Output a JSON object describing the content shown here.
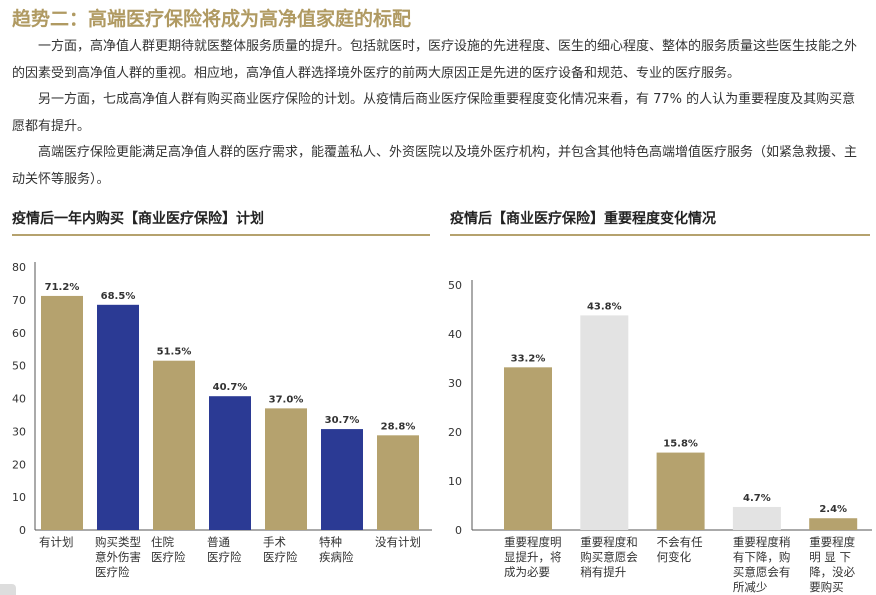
{
  "title": "趋势二：高端医疗保险将成为高净值家庭的标配",
  "paragraphs": [
    "一方面，高净值人群更期待就医整体服务质量的提升。包括就医时，医疗设施的先进程度、医生的细心程度、整体的服务质量这些医生技能之外的因素受到高净值人群的重视。相应地，高净值人群选择境外医疗的前两大原因正是先进的医疗设备和规范、专业的医疗服务。",
    "另一方面，七成高净值人群有购买商业医疗保险的计划。从疫情后商业医疗保险重要程度变化情况来看，有 77% 的人认为重要程度及其购买意愿都有提升。",
    "高端医疗保险更能满足高净值人群的医疗需求，能覆盖私人、外资医院以及境外医疗机构，并包含其他特色高端增值医疗服务（如紧急救援、主动关怀等服务）。"
  ],
  "colors": {
    "gold": "#b5a26e",
    "blue": "#2b3a94",
    "gray": "#e3e3e3",
    "title": "#b09a62"
  },
  "chart_data": [
    {
      "type": "bar",
      "title": "疫情后一年内购买【商业医疗保险】计划",
      "categories": [
        "有计划",
        "购买类型\n意外伤害\n医疗险",
        "住院\n医疗险",
        "普通\n医疗险",
        "手术\n医疗险",
        "特种\n疾病险",
        "没有计划"
      ],
      "values": [
        71.2,
        68.5,
        51.5,
        40.7,
        37.0,
        30.7,
        28.8
      ],
      "labels": [
        "71.2%",
        "68.5%",
        "51.5%",
        "40.7%",
        "37.0%",
        "30.7%",
        "28.8%"
      ],
      "bar_colors": [
        "gold",
        "blue",
        "gold",
        "blue",
        "gold",
        "blue",
        "gold"
      ],
      "ylim": [
        0,
        80
      ],
      "yticks": [
        0,
        10,
        20,
        30,
        40,
        50,
        60,
        70,
        80
      ],
      "grid": false
    },
    {
      "type": "bar",
      "title": "疫情后【商业医疗保险】重要程度变化情况",
      "categories": [
        "重要程度明\n显提升，将\n成为必要",
        "重要程度和\n购买意愿会\n稍有提升",
        "不会有任\n何变化",
        "重要程度稍\n有下降，购\n买意愿会有\n所减少",
        "重要程度\n明 显 下\n降，没必\n要购买"
      ],
      "values": [
        33.2,
        43.8,
        15.8,
        4.7,
        2.4
      ],
      "labels": [
        "33.2%",
        "43.8%",
        "15.8%",
        "4.7%",
        "2.4%"
      ],
      "bar_colors": [
        "gold",
        "gray",
        "gold",
        "gray",
        "gold"
      ],
      "ylim": [
        0,
        50
      ],
      "yticks": [
        0,
        10,
        20,
        30,
        40,
        50
      ],
      "grid": false
    }
  ]
}
